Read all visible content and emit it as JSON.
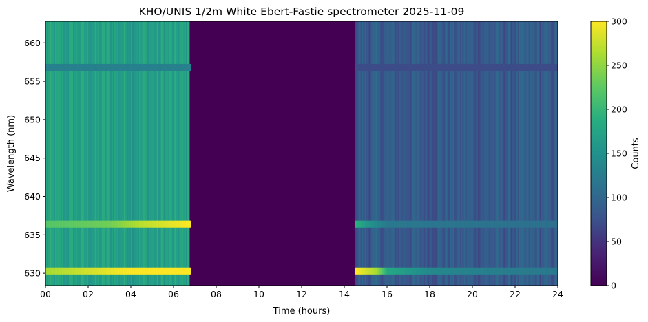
{
  "chart_data": {
    "type": "heatmap",
    "title": "KHO/UNIS 1/2m White Ebert-Fastie spectrometer 2025-11-09",
    "xlabel": "Time (hours)",
    "ylabel": "Wavelength (nm)",
    "colorbar_label": "Counts",
    "colormap": "viridis",
    "xlim": [
      0,
      24
    ],
    "ylim": [
      628.4,
      662.8
    ],
    "clim": [
      0,
      300
    ],
    "xticks": [
      0,
      2,
      4,
      6,
      8,
      10,
      12,
      14,
      16,
      18,
      20,
      22,
      24
    ],
    "xtick_labels": [
      "00",
      "02",
      "04",
      "06",
      "08",
      "10",
      "12",
      "14",
      "16",
      "18",
      "20",
      "22",
      "24"
    ],
    "yticks": [
      630,
      635,
      640,
      645,
      650,
      655,
      660
    ],
    "ytick_labels": [
      "630",
      "635",
      "640",
      "645",
      "650",
      "655",
      "660"
    ],
    "cticks": [
      0,
      50,
      100,
      150,
      200,
      250,
      300
    ],
    "ctick_labels": [
      "0",
      "50",
      "100",
      "150",
      "200",
      "250",
      "300"
    ],
    "segments": [
      {
        "t_start": 0.0,
        "t_end": 6.75,
        "background_counts": 170,
        "state": "data"
      },
      {
        "t_start": 6.75,
        "t_end": 14.5,
        "background_counts": 0,
        "state": "no data"
      },
      {
        "t_start": 14.5,
        "t_end": 24.0,
        "background_counts": 85,
        "state": "data"
      }
    ],
    "emission_lines": [
      {
        "wavelength_nm": 630.3,
        "intensity_profile": [
          {
            "t": 0.0,
            "counts": 260
          },
          {
            "t": 2.0,
            "counts": 280
          },
          {
            "t": 4.0,
            "counts": 300
          },
          {
            "t": 6.7,
            "counts": 300
          },
          {
            "t": 14.55,
            "counts": 300
          },
          {
            "t": 15.5,
            "counts": 260
          },
          {
            "t": 16.0,
            "counts": 180
          },
          {
            "t": 18.0,
            "counts": 140
          },
          {
            "t": 20.0,
            "counts": 130
          },
          {
            "t": 22.0,
            "counts": 125
          },
          {
            "t": 24.0,
            "counts": 120
          }
        ]
      },
      {
        "wavelength_nm": 636.4,
        "intensity_profile": [
          {
            "t": 0.0,
            "counts": 220
          },
          {
            "t": 3.0,
            "counts": 235
          },
          {
            "t": 4.5,
            "counts": 270
          },
          {
            "t": 6.7,
            "counts": 300
          },
          {
            "t": 14.55,
            "counts": 190
          },
          {
            "t": 15.0,
            "counts": 160
          },
          {
            "t": 16.0,
            "counts": 120
          },
          {
            "t": 20.0,
            "counts": 115
          },
          {
            "t": 24.0,
            "counts": 110
          }
        ]
      },
      {
        "wavelength_nm": 656.8,
        "intensity_profile": [
          {
            "t": 0.0,
            "counts": 130
          },
          {
            "t": 6.7,
            "counts": 130
          },
          {
            "t": 14.55,
            "counts": 70
          },
          {
            "t": 24.0,
            "counts": 70
          }
        ]
      }
    ]
  }
}
